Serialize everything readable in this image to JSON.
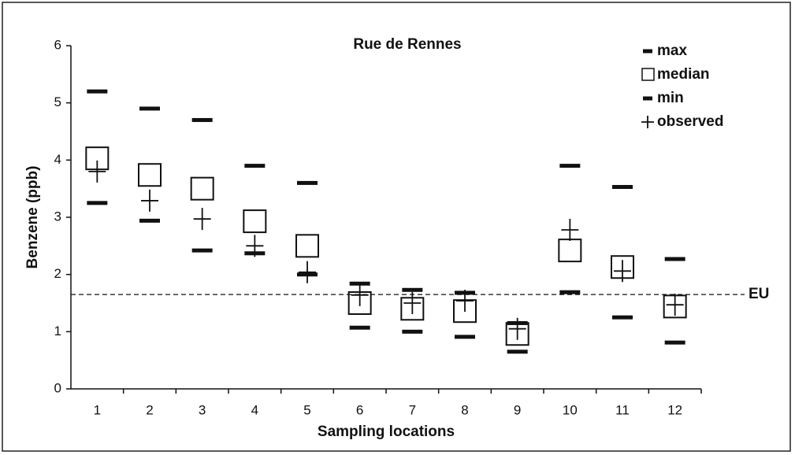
{
  "chart_data": {
    "type": "range",
    "title": "Rue de Rennes",
    "x_label": "Sampling locations",
    "y_label": "Benzene (ppb)",
    "categories": [
      "1",
      "2",
      "3",
      "4",
      "5",
      "6",
      "7",
      "8",
      "9",
      "10",
      "11",
      "12"
    ],
    "series": [
      {
        "name": "max",
        "marker": "dash",
        "color": "#111111",
        "values": [
          5.2,
          4.9,
          4.7,
          3.9,
          3.6,
          1.84,
          1.73,
          1.68,
          1.15,
          3.9,
          3.53,
          2.27
        ]
      },
      {
        "name": "median",
        "marker": "square",
        "color": "#111111",
        "values": [
          4.03,
          3.74,
          3.5,
          2.93,
          2.5,
          1.5,
          1.4,
          1.36,
          0.96,
          2.42,
          2.13,
          1.44
        ]
      },
      {
        "name": "min",
        "marker": "dash",
        "color": "#111111",
        "values": [
          3.25,
          2.94,
          2.42,
          2.37,
          2.0,
          1.07,
          1.0,
          0.91,
          0.65,
          1.69,
          1.25,
          0.81
        ]
      },
      {
        "name": "observed",
        "marker": "plus",
        "color": "#111111",
        "values": [
          3.8,
          3.29,
          2.97,
          2.5,
          2.04,
          1.64,
          1.5,
          1.54,
          1.05,
          2.78,
          2.06,
          1.47
        ]
      }
    ],
    "reference_lines": [
      {
        "label": "EU",
        "value": 1.65
      }
    ],
    "ylim": [
      0,
      6
    ],
    "yticks": [
      0,
      1,
      2,
      3,
      4,
      5,
      6
    ],
    "grid": false
  }
}
